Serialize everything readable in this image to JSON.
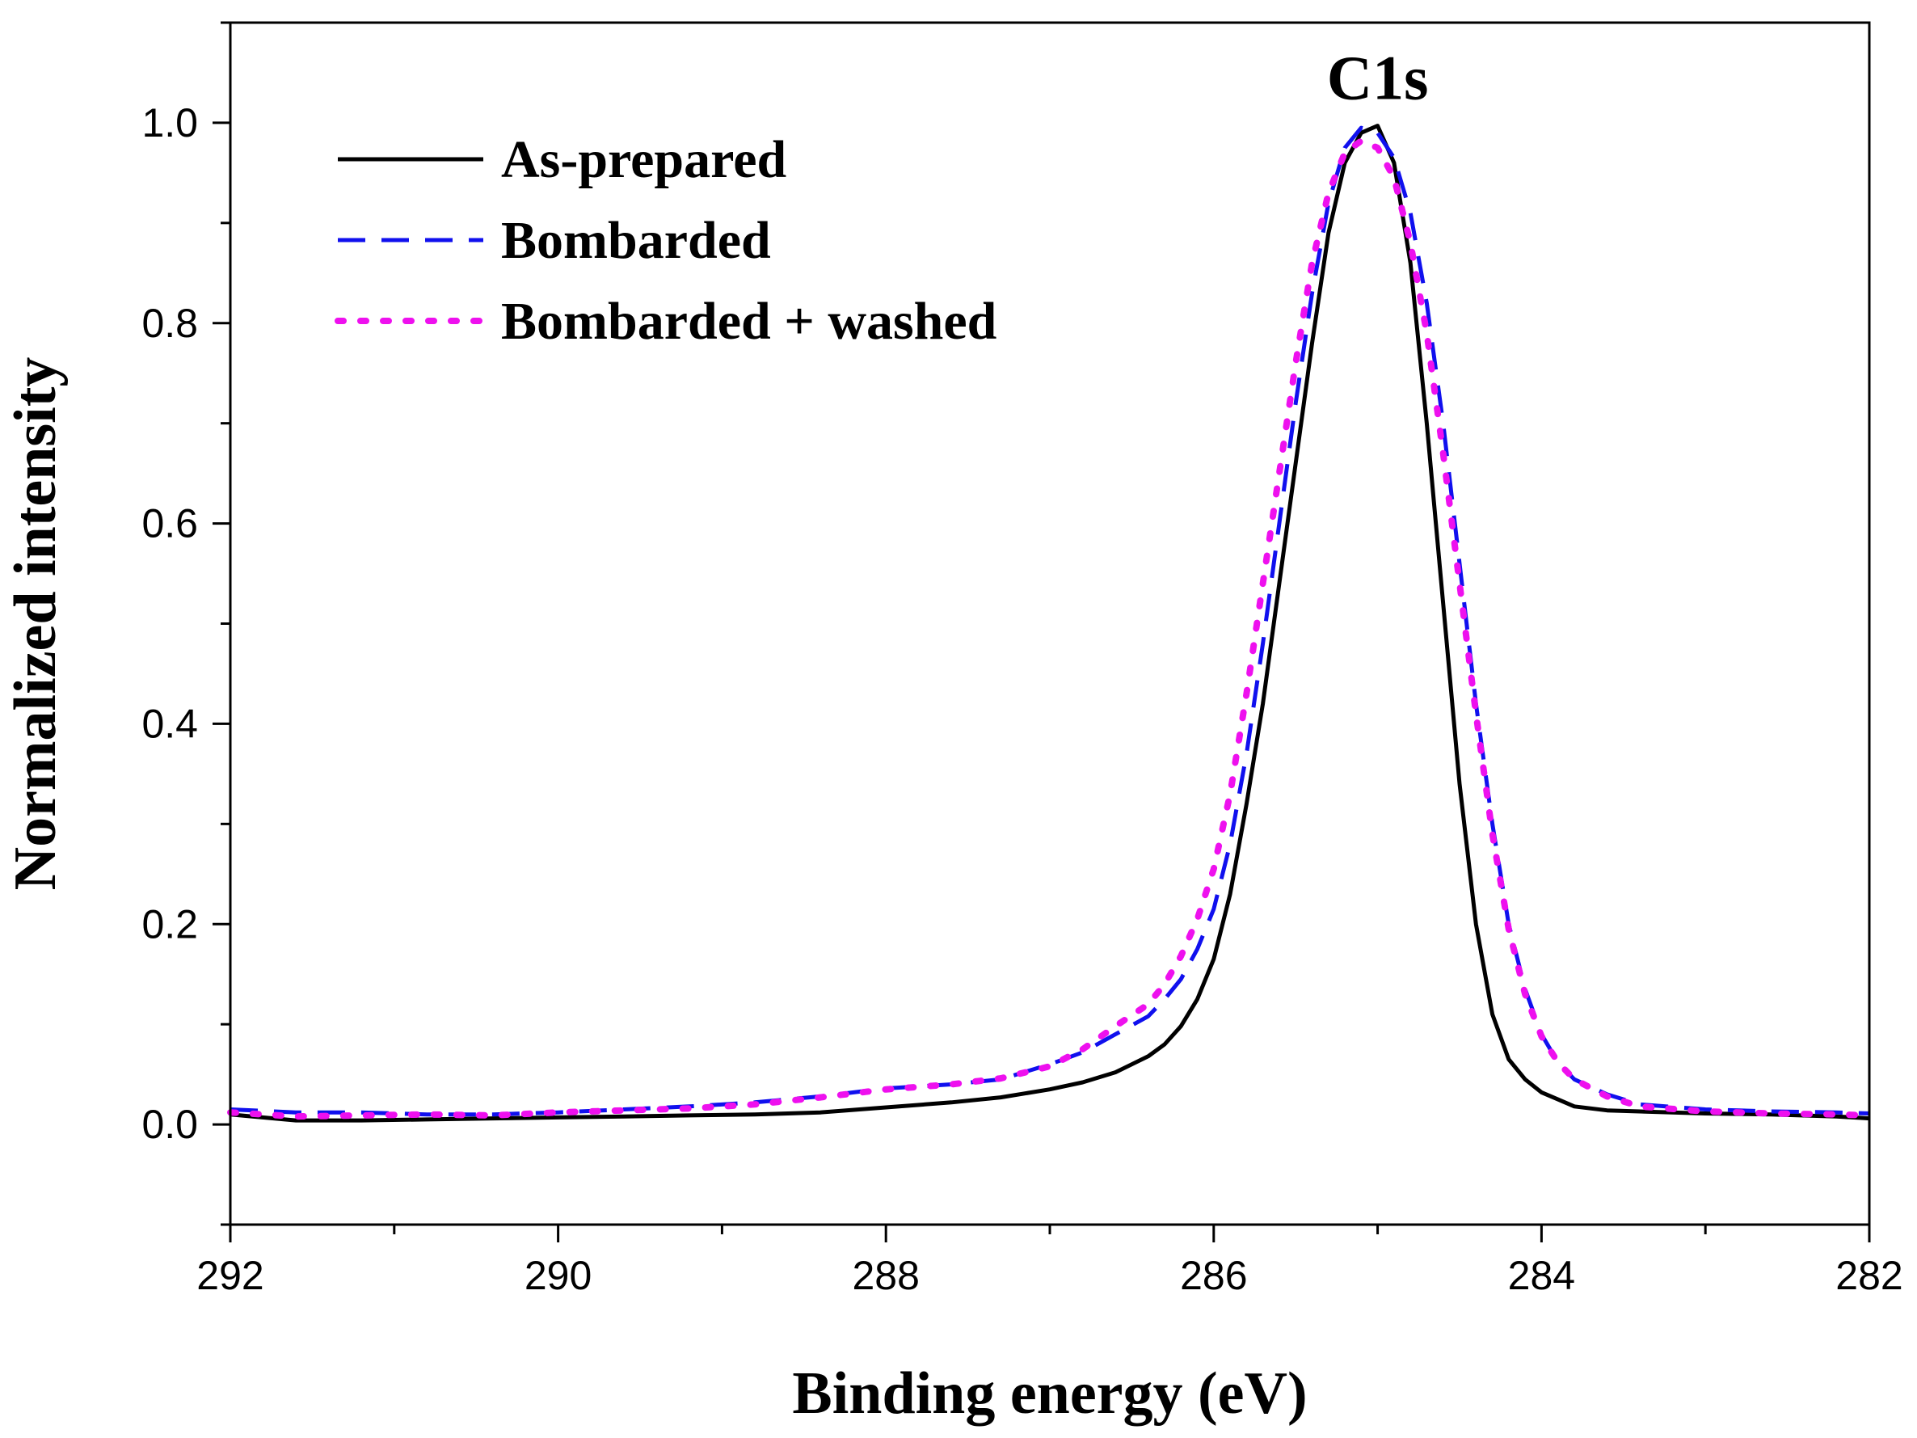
{
  "chart_data": {
    "type": "line",
    "title": "",
    "xlabel": "Binding energy (eV)",
    "ylabel": "Normalized intensity",
    "xlim": [
      292,
      282
    ],
    "ylim": [
      -0.1,
      1.1
    ],
    "x_reversed": true,
    "grid": false,
    "legend_position": "top-left",
    "xticks": [
      292,
      290,
      288,
      286,
      284,
      282
    ],
    "xtick_labels": [
      "292",
      "290",
      "288",
      "286",
      "284",
      "282"
    ],
    "yticks": [
      0.0,
      0.2,
      0.4,
      0.6,
      0.8,
      1.0
    ],
    "ytick_labels": [
      "0.0",
      "0.2",
      "0.4",
      "0.6",
      "0.8",
      "1.0"
    ],
    "annotations": [
      {
        "text": "C1s",
        "x": 285.0,
        "y": 1.04
      }
    ],
    "series": [
      {
        "name": "As-prepared",
        "color": "#000000",
        "style": "solid",
        "points": [
          [
            292.0,
            0.01
          ],
          [
            291.6,
            0.004
          ],
          [
            291.2,
            0.004
          ],
          [
            290.8,
            0.005
          ],
          [
            290.4,
            0.006
          ],
          [
            290.0,
            0.007
          ],
          [
            289.6,
            0.008
          ],
          [
            289.2,
            0.009
          ],
          [
            288.8,
            0.01
          ],
          [
            288.4,
            0.012
          ],
          [
            288.0,
            0.017
          ],
          [
            287.6,
            0.022
          ],
          [
            287.3,
            0.027
          ],
          [
            287.0,
            0.035
          ],
          [
            286.8,
            0.042
          ],
          [
            286.6,
            0.052
          ],
          [
            286.4,
            0.068
          ],
          [
            286.3,
            0.08
          ],
          [
            286.2,
            0.098
          ],
          [
            286.1,
            0.125
          ],
          [
            286.0,
            0.165
          ],
          [
            285.9,
            0.23
          ],
          [
            285.8,
            0.32
          ],
          [
            285.7,
            0.42
          ],
          [
            285.6,
            0.54
          ],
          [
            285.5,
            0.66
          ],
          [
            285.4,
            0.78
          ],
          [
            285.3,
            0.89
          ],
          [
            285.2,
            0.96
          ],
          [
            285.1,
            0.99
          ],
          [
            285.0,
            0.997
          ],
          [
            284.9,
            0.96
          ],
          [
            284.8,
            0.86
          ],
          [
            284.7,
            0.7
          ],
          [
            284.6,
            0.52
          ],
          [
            284.5,
            0.34
          ],
          [
            284.4,
            0.2
          ],
          [
            284.3,
            0.11
          ],
          [
            284.2,
            0.065
          ],
          [
            284.1,
            0.045
          ],
          [
            284.0,
            0.032
          ],
          [
            283.9,
            0.025
          ],
          [
            283.8,
            0.018
          ],
          [
            283.6,
            0.014
          ],
          [
            283.4,
            0.013
          ],
          [
            283.0,
            0.011
          ],
          [
            282.6,
            0.01
          ],
          [
            282.2,
            0.008
          ],
          [
            282.0,
            0.006
          ]
        ]
      },
      {
        "name": "Bombarded",
        "color": "#1010ee",
        "style": "dashed",
        "points": [
          [
            292.0,
            0.015
          ],
          [
            291.6,
            0.012
          ],
          [
            291.2,
            0.012
          ],
          [
            290.8,
            0.01
          ],
          [
            290.4,
            0.01
          ],
          [
            290.0,
            0.012
          ],
          [
            289.6,
            0.015
          ],
          [
            289.2,
            0.018
          ],
          [
            288.8,
            0.022
          ],
          [
            288.4,
            0.028
          ],
          [
            288.0,
            0.036
          ],
          [
            287.6,
            0.04
          ],
          [
            287.3,
            0.045
          ],
          [
            287.0,
            0.06
          ],
          [
            286.8,
            0.072
          ],
          [
            286.6,
            0.09
          ],
          [
            286.4,
            0.108
          ],
          [
            286.3,
            0.125
          ],
          [
            286.2,
            0.145
          ],
          [
            286.1,
            0.175
          ],
          [
            286.0,
            0.215
          ],
          [
            285.9,
            0.28
          ],
          [
            285.8,
            0.37
          ],
          [
            285.7,
            0.48
          ],
          [
            285.6,
            0.6
          ],
          [
            285.5,
            0.72
          ],
          [
            285.4,
            0.83
          ],
          [
            285.3,
            0.92
          ],
          [
            285.2,
            0.975
          ],
          [
            285.1,
            0.995
          ],
          [
            285.0,
            0.99
          ],
          [
            284.9,
            0.965
          ],
          [
            284.8,
            0.91
          ],
          [
            284.7,
            0.82
          ],
          [
            284.6,
            0.7
          ],
          [
            284.5,
            0.56
          ],
          [
            284.4,
            0.42
          ],
          [
            284.3,
            0.3
          ],
          [
            284.2,
            0.2
          ],
          [
            284.1,
            0.135
          ],
          [
            284.0,
            0.09
          ],
          [
            283.9,
            0.062
          ],
          [
            283.8,
            0.045
          ],
          [
            283.6,
            0.03
          ],
          [
            283.4,
            0.02
          ],
          [
            283.0,
            0.015
          ],
          [
            282.6,
            0.013
          ],
          [
            282.2,
            0.012
          ],
          [
            282.0,
            0.011
          ]
        ]
      },
      {
        "name": "Bombarded + washed",
        "color": "#ee10ee",
        "style": "dotted",
        "points": [
          [
            292.0,
            0.012
          ],
          [
            291.6,
            0.008
          ],
          [
            291.2,
            0.009
          ],
          [
            290.8,
            0.01
          ],
          [
            290.4,
            0.009
          ],
          [
            290.0,
            0.012
          ],
          [
            289.6,
            0.014
          ],
          [
            289.2,
            0.016
          ],
          [
            288.8,
            0.02
          ],
          [
            288.4,
            0.027
          ],
          [
            288.0,
            0.035
          ],
          [
            287.6,
            0.04
          ],
          [
            287.3,
            0.046
          ],
          [
            287.0,
            0.058
          ],
          [
            286.8,
            0.075
          ],
          [
            286.6,
            0.098
          ],
          [
            286.4,
            0.12
          ],
          [
            286.3,
            0.14
          ],
          [
            286.2,
            0.168
          ],
          [
            286.1,
            0.205
          ],
          [
            286.0,
            0.255
          ],
          [
            285.9,
            0.33
          ],
          [
            285.8,
            0.43
          ],
          [
            285.7,
            0.54
          ],
          [
            285.6,
            0.65
          ],
          [
            285.5,
            0.76
          ],
          [
            285.4,
            0.86
          ],
          [
            285.3,
            0.93
          ],
          [
            285.2,
            0.97
          ],
          [
            285.1,
            0.982
          ],
          [
            285.0,
            0.975
          ],
          [
            284.9,
            0.945
          ],
          [
            284.8,
            0.88
          ],
          [
            284.7,
            0.79
          ],
          [
            284.6,
            0.67
          ],
          [
            284.5,
            0.54
          ],
          [
            284.4,
            0.41
          ],
          [
            284.3,
            0.29
          ],
          [
            284.2,
            0.195
          ],
          [
            284.1,
            0.13
          ],
          [
            284.0,
            0.088
          ],
          [
            283.9,
            0.062
          ],
          [
            283.8,
            0.045
          ],
          [
            283.6,
            0.028
          ],
          [
            283.4,
            0.018
          ],
          [
            283.0,
            0.013
          ],
          [
            282.6,
            0.011
          ],
          [
            282.2,
            0.01
          ],
          [
            282.0,
            0.009
          ]
        ]
      }
    ]
  }
}
